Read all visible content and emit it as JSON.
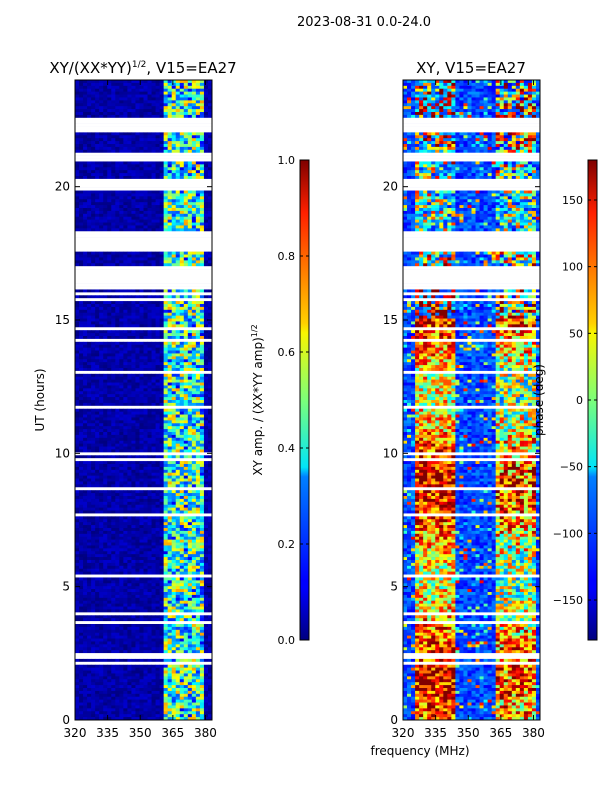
{
  "chart_data": {
    "type": "heatmap",
    "suptitle": "2023-08-31 0.0-24.0",
    "xlabel": "frequency (MHz)",
    "panels": [
      {
        "id": "amp",
        "title_main": "XY/(XX*YY)",
        "title_sup": "1/2",
        "title_tail": ", V15=EA27",
        "ylabel": "UT (hours)",
        "xlim": [
          320,
          383
        ],
        "ylim": [
          0,
          24
        ],
        "xticks": [
          320,
          335,
          350,
          365,
          380
        ],
        "yticks": [
          0,
          5,
          10,
          15,
          20
        ],
        "colorbar": {
          "label_main": "XY amp. / (XX*YY amp)",
          "label_sup": "1/2",
          "range": [
            0.0,
            1.0
          ],
          "ticks": [
            "0.0",
            "0.2",
            "0.4",
            "0.6",
            "0.8",
            "1.0"
          ]
        }
      },
      {
        "id": "phase",
        "title_main": "XY, V15=EA27",
        "title_sup": "",
        "title_tail": "",
        "ylabel": "",
        "xlim": [
          320,
          383
        ],
        "ylim": [
          0,
          24
        ],
        "xticks": [
          320,
          335,
          350,
          365,
          380
        ],
        "yticks": [
          0,
          5,
          10,
          15,
          20
        ],
        "colorbar": {
          "label_main": "phase (deg)",
          "label_sup": "",
          "range": [
            -180,
            180
          ],
          "ticks": [
            "−150",
            "−100",
            "−50",
            "0",
            "50",
            "100",
            "150"
          ]
        }
      }
    ],
    "blank_time_ranges": [
      [
        16.2,
        17.0
      ],
      [
        17.6,
        18.3
      ],
      [
        19.8,
        20.3
      ],
      [
        21.1,
        21.3
      ],
      [
        22.0,
        22.6
      ],
      [
        2.3,
        2.5
      ]
    ]
  }
}
